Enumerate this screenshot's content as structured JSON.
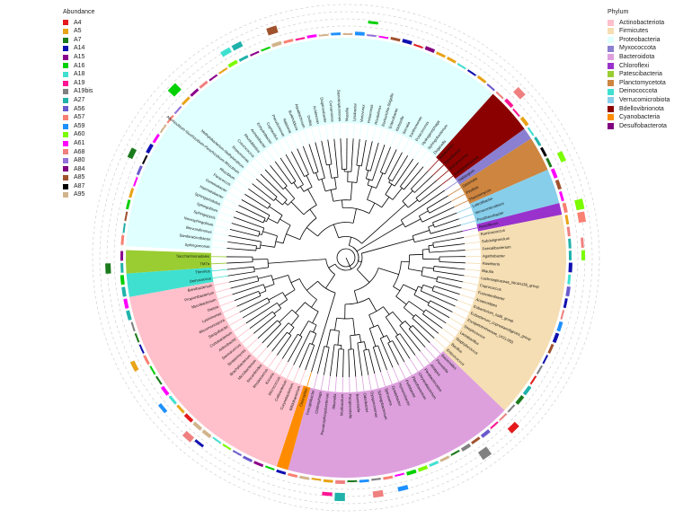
{
  "abundance_legend": {
    "title": "Abundance",
    "items": [
      {
        "label": "A4",
        "color": "#e41a1c"
      },
      {
        "label": "A5",
        "color": "#e8a317"
      },
      {
        "label": "A7",
        "color": "#1b7a1b"
      },
      {
        "label": "A14",
        "color": "#1010b0"
      },
      {
        "label": "A15",
        "color": "#8b008b"
      },
      {
        "label": "A16",
        "color": "#00d000"
      },
      {
        "label": "A18",
        "color": "#40e0d0"
      },
      {
        "label": "A19",
        "color": "#ff1493"
      },
      {
        "label": "A19bis",
        "color": "#808080"
      },
      {
        "label": "A27",
        "color": "#20b2aa"
      },
      {
        "label": "A56",
        "color": "#6a5acd"
      },
      {
        "label": "A57",
        "color": "#fa8072"
      },
      {
        "label": "A59",
        "color": "#1e90ff"
      },
      {
        "label": "A60",
        "color": "#7cfc00"
      },
      {
        "label": "A61",
        "color": "#ff00ff"
      },
      {
        "label": "A68",
        "color": "#f08080"
      },
      {
        "label": "A80",
        "color": "#9370db"
      },
      {
        "label": "A84",
        "color": "#800080"
      },
      {
        "label": "A85",
        "color": "#a0522d"
      },
      {
        "label": "A87",
        "color": "#000000"
      },
      {
        "label": "A95",
        "color": "#d2b48c"
      }
    ]
  },
  "phylum_legend": {
    "title": "Phylum",
    "items": [
      {
        "label": "Actinobacteriota",
        "color": "#ffc0cb"
      },
      {
        "label": "Firmicutes",
        "color": "#f5deb3"
      },
      {
        "label": "Proteobacteria",
        "color": "#e0ffff"
      },
      {
        "label": "Myxococcota",
        "color": "#8a7fd0"
      },
      {
        "label": "Bacteroidota",
        "color": "#dda0dd"
      },
      {
        "label": "Chloroflexi",
        "color": "#9932cc"
      },
      {
        "label": "Patescibacteria",
        "color": "#9acd32"
      },
      {
        "label": "Planctomycetota",
        "color": "#cd853f"
      },
      {
        "label": "Deinococcota",
        "color": "#40e0d0"
      },
      {
        "label": "Verrucomicrobiota",
        "color": "#87ceeb"
      },
      {
        "label": "Bdellovibrionota",
        "color": "#8b0000"
      },
      {
        "label": "Cyanobacteria",
        "color": "#ff8c00"
      },
      {
        "label": "Desulfobacterota",
        "color": "#800080"
      }
    ]
  },
  "tree": {
    "phylum_sectors": [
      {
        "phylum": "Proteobacteria",
        "genera": [
          "Sphingomonas",
          "Sandaracinobacter",
          "Brevundimonas",
          "Novosphingobium",
          "Sphingopyxis",
          "Sphingobium",
          "Sphingorhabdus",
          "Haematobacter",
          "Gemmobacter",
          "Paracoccus",
          "Rhizobium",
          "Allorhizobium-Neorhizobium-Pararhizobium-Rhizobium",
          "Methylobacterium-Methylorubrum",
          "Roseomonas",
          "Craurococcus",
          "Rhodoblastus",
          "Acinetobacter",
          "Enhydrobacter",
          "Cupriavidus",
          "Pseudomonas",
          "Ralstonia",
          "Burkholderia",
          "Aquabacterium",
          "Delftia",
          "Acidovorax",
          "Diaphorobacter",
          "Comamonas",
          "Stenotrophomonas",
          "Massilia",
          "Lysobacter",
          "Variovorax",
          "Pelomonas",
          "Rhodoferax",
          "Escherichia-Shigella",
          "Enterobacter",
          "Klebsiella",
          "Serratia",
          "Xanthomonas",
          "Polaromonas",
          "Hydrogenophaga",
          "Sphingobacterium",
          "Duganella"
        ]
      },
      {
        "phylum": "Bdellovibrionota",
        "genera": [
          "Bdellovibrio",
          "Peredibacter",
          "Bacteriovorax",
          "Halobacteriovorax"
        ]
      },
      {
        "phylum": "Myxococcota",
        "genera": [
          "Haliangium"
        ]
      },
      {
        "phylum": "Planctomycetota",
        "genera": [
          "Gemmata",
          "Pirellula",
          "Planctomyces"
        ]
      },
      {
        "phylum": "Verrucomicrobiota",
        "genera": [
          "Luteolibacter",
          "Verrucomicrobium",
          "Prosthecobacter"
        ]
      },
      {
        "phylum": "Chloroflexi",
        "genera": [
          "Roseiflexus"
        ]
      },
      {
        "phylum": "Firmicutes",
        "genera": [
          "Ruminococcus",
          "Subdoligranulum",
          "Faecalibacterium",
          "Agathobacter",
          "Roseburia",
          "Blautia",
          "Lachnospiraceae_NK4A136_group",
          "Coprococcus",
          "Fusicatenibacter",
          "Anaerostipes",
          "Eubacterium_hallii_group",
          "Eubacterium_coprostanoligenes_group",
          "Erysipelotrichaceae_UCG-003",
          "Streptococcus",
          "Lactobacillus",
          "Staphylococcus",
          "Bacillus",
          "Enterococcus"
        ]
      },
      {
        "phylum": "Bacteroidota",
        "genera": [
          "Bacteroides",
          "Prevotella",
          "Alistipes",
          "Parabacteroides",
          "Chryseobacterium",
          "Flavobacterium",
          "Pedobacter",
          "Hymenobacter",
          "Dyadobacter",
          "Spirosoma",
          "Sphingobacterium",
          "Dysgonomonas",
          "Odoribacter",
          "Barnesiella",
          "Paraprevotella",
          "Muribaculum",
          "Rikenella",
          "Pseudosphingobacterium",
          "Chitinophaga",
          "Ferruginibacter"
        ]
      },
      {
        "phylum": "Cyanobacteria",
        "genera": [
          "Chloroplast"
        ]
      },
      {
        "phylum": "Actinobacteriota",
        "genera": [
          "Bifidobacterium",
          "Corynebacterium",
          "Cutibacterium",
          "Micrococcus",
          "Kocuria",
          "Rhodococcus",
          "Nocardioides",
          "Microbacterium",
          "Brachybacterium",
          "Streptomyces",
          "Dermacoccus",
          "Arthrobacter",
          "Curtobacterium",
          "Sanguibacter",
          "Micromonospora",
          "Lysinimonas",
          "Dietzia",
          "Mycobacterium",
          "Propionibacterium",
          "Brevibacterium"
        ]
      },
      {
        "phylum": "Deinococcota",
        "genera": [
          "Deinococcus",
          "Thermus"
        ]
      },
      {
        "phylum": "Patescibacteria",
        "genera": [
          "TM7a",
          "Saccharimonadales"
        ]
      }
    ]
  }
}
